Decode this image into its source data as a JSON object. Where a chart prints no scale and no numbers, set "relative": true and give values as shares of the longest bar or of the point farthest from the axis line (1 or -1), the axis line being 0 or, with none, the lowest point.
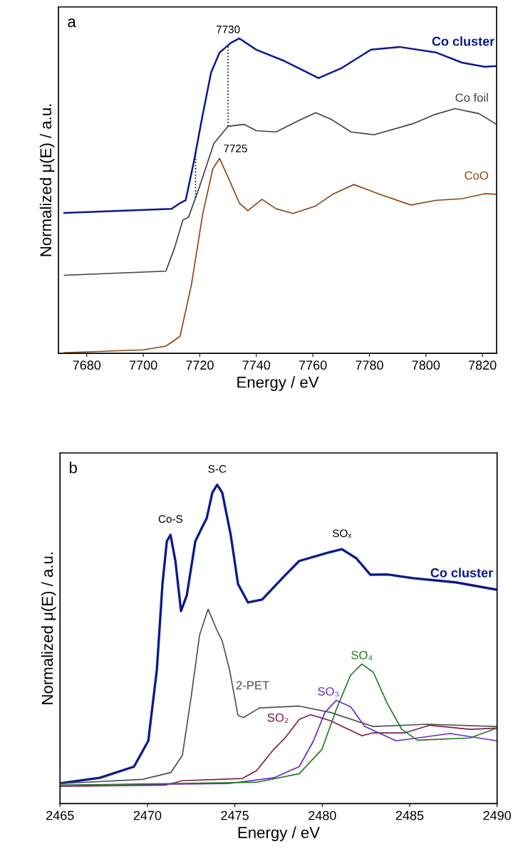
{
  "chart_data": [
    {
      "type": "line",
      "title": "a",
      "xlabel": "Energy / eV",
      "ylabel": "Normalized μ(E) / a.u.",
      "relative": true,
      "tick_labels": "x",
      "grid": false,
      "legend": false,
      "marker": "none",
      "line_style": "solid",
      "xlim": [
        7670,
        7825
      ],
      "xticks": [
        7680,
        7700,
        7720,
        7740,
        7760,
        7780,
        7800,
        7820
      ],
      "series": [
        {
          "name": "Co cluster",
          "color": "#0b1a8c",
          "x": [
            7672,
            7710,
            7713,
            7715,
            7718,
            7721,
            7724,
            7727,
            7731,
            7734,
            7740,
            7750,
            7762,
            7770,
            7780.5,
            7790.6,
            7803.7,
            7812.8,
            7820.8,
            7825
          ],
          "values": [
            0.446,
            0.459,
            0.477,
            0.486,
            0.613,
            0.757,
            0.892,
            0.955,
            0.986,
            1.0,
            0.964,
            0.928,
            0.874,
            0.905,
            0.964,
            0.973,
            0.955,
            0.923,
            0.91,
            0.912
          ]
        },
        {
          "name": "Co foil",
          "color": "#404040",
          "x": [
            7672,
            7708,
            7711,
            7714,
            7716,
            7720,
            7725,
            7730,
            7735.7,
            7740,
            7747,
            7755,
            7761,
            7766.5,
            7773.5,
            7781.6,
            7795.7,
            7802.7,
            7810.3,
            7818.8,
            7825
          ],
          "values": [
            0.248,
            0.261,
            0.333,
            0.423,
            0.432,
            0.532,
            0.667,
            0.721,
            0.727,
            0.707,
            0.703,
            0.739,
            0.764,
            0.743,
            0.703,
            0.694,
            0.73,
            0.757,
            0.777,
            0.761,
            0.727
          ]
        },
        {
          "name": "CoO",
          "color": "#8b4513",
          "x": [
            7672,
            7700,
            7708,
            7713,
            7717,
            7721,
            7724.6,
            7727,
            7730,
            7734,
            7737,
            7742,
            7747,
            7753,
            7761,
            7767,
            7774.5,
            7783.6,
            7794.7,
            7803.7,
            7812.8,
            7820.8,
            7825
          ],
          "values": [
            0.002,
            0.011,
            0.023,
            0.054,
            0.216,
            0.441,
            0.586,
            0.619,
            0.559,
            0.477,
            0.453,
            0.489,
            0.459,
            0.444,
            0.468,
            0.505,
            0.536,
            0.505,
            0.471,
            0.486,
            0.491,
            0.507,
            0.505
          ]
        }
      ],
      "ref_lines": [
        {
          "axis": "x",
          "value": 7730,
          "label": "7730",
          "line_style": "dotted",
          "color": "#000000"
        },
        {
          "axis": "x",
          "value": 7718.5,
          "line_style": "dotted",
          "color": "#000000"
        }
      ],
      "annotations": [
        {
          "text": "7725",
          "x": 7727,
          "y": 0.619
        }
      ]
    },
    {
      "type": "line",
      "title": "b",
      "xlabel": "Energy / eV",
      "ylabel": "Normalized μ(E) / a.u.",
      "relative": true,
      "tick_labels": "x",
      "grid": false,
      "legend": false,
      "marker": "none",
      "line_style": "solid",
      "xlim": [
        2465,
        2490
      ],
      "xticks": [
        2465,
        2470,
        2475,
        2480,
        2485,
        2490
      ],
      "series": [
        {
          "name": "Co cluster",
          "color": "#0b1a8c",
          "x": [
            2465,
            2467.28,
            2469.23,
            2470.05,
            2470.54,
            2470.86,
            2471.11,
            2471.32,
            2471.6,
            2471.92,
            2472.25,
            2472.74,
            2473.14,
            2473.39,
            2473.71,
            2473.99,
            2474.28,
            2474.77,
            2475.18,
            2475.75,
            2476.56,
            2477.87,
            2478.68,
            2480.31,
            2481.12,
            2481.94,
            2482.75,
            2483.73,
            2485.2,
            2487.64,
            2490
          ],
          "values": [
            0.064,
            0.081,
            0.116,
            0.197,
            0.421,
            0.689,
            0.823,
            0.843,
            0.761,
            0.604,
            0.653,
            0.823,
            0.868,
            0.895,
            0.975,
            1.0,
            0.975,
            0.841,
            0.689,
            0.631,
            0.64,
            0.716,
            0.761,
            0.787,
            0.798,
            0.77,
            0.718,
            0.719,
            0.707,
            0.694,
            0.671
          ]
        },
        {
          "name": "2-PET",
          "color": "#505050",
          "x": [
            2465,
            2469.72,
            2471.35,
            2472.0,
            2472.49,
            2472.98,
            2473.47,
            2473.96,
            2474.28,
            2474.69,
            2475.18,
            2475.5,
            2476.4,
            2478.68,
            2480.47,
            2482.92,
            2486.0,
            2490
          ],
          "values": [
            0.063,
            0.076,
            0.098,
            0.152,
            0.331,
            0.528,
            0.61,
            0.546,
            0.51,
            0.421,
            0.277,
            0.27,
            0.3,
            0.306,
            0.286,
            0.242,
            0.249,
            0.242
          ]
        },
        {
          "name": "SO₂",
          "color": "#7b1e4b",
          "x": [
            2465,
            2471.03,
            2472.0,
            2475.43,
            2476.24,
            2477.22,
            2477.87,
            2478.68,
            2479.33,
            2480.47,
            2482.26,
            2482.92,
            2484.71,
            2486.17,
            2488.45,
            2490
          ],
          "values": [
            0.054,
            0.058,
            0.072,
            0.079,
            0.103,
            0.17,
            0.206,
            0.264,
            0.279,
            0.26,
            0.213,
            0.222,
            0.222,
            0.246,
            0.233,
            0.237
          ]
        },
        {
          "name": "SO₃",
          "color": "#6a28c8",
          "x": [
            2465,
            2474.61,
            2477.22,
            2478.68,
            2479.5,
            2480.15,
            2480.8,
            2481.62,
            2482.43,
            2484.22,
            2487.31,
            2490
          ],
          "values": [
            0.058,
            0.063,
            0.081,
            0.116,
            0.197,
            0.286,
            0.324,
            0.304,
            0.242,
            0.197,
            0.22,
            0.197
          ]
        },
        {
          "name": "SO₄",
          "color": "#207a20",
          "x": [
            2465,
            2476.24,
            2478.68,
            2479.98,
            2480.8,
            2481.62,
            2482.26,
            2482.92,
            2483.73,
            2484.55,
            2485.44,
            2488.45,
            2490
          ],
          "values": [
            0.058,
            0.067,
            0.094,
            0.17,
            0.295,
            0.403,
            0.438,
            0.412,
            0.313,
            0.233,
            0.199,
            0.206,
            0.237
          ]
        }
      ],
      "annotations": [
        {
          "text": "Co-S",
          "x": 2471.32,
          "y": 0.843
        },
        {
          "text": "S-C",
          "x": 2473.99,
          "y": 1.0
        },
        {
          "text": "SOₓ",
          "x": 2481.12,
          "y": 0.798
        }
      ]
    }
  ]
}
